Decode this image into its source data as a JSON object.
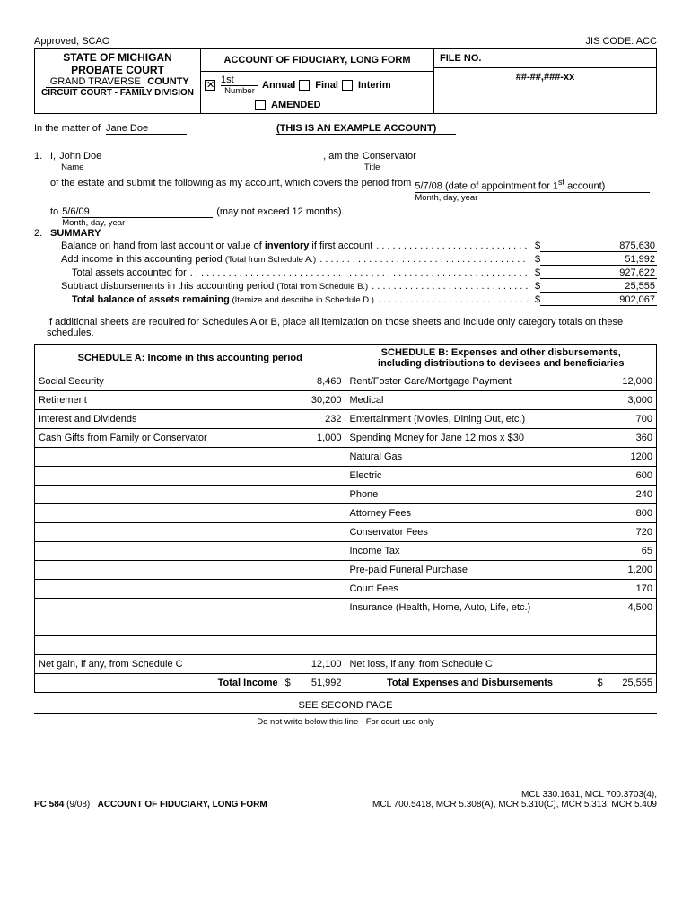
{
  "header": {
    "approved": "Approved, SCAO",
    "jis": "JIS CODE: ACC",
    "state": "STATE OF MICHIGAN",
    "court": "PROBATE COURT",
    "county": "GRAND TRAVERSE",
    "county_label": "COUNTY",
    "circuit": "CIRCUIT COURT - FAMILY DIVISION",
    "title": "ACCOUNT OF FIDUCIARY, LONG FORM",
    "number_val": "1st",
    "number_lbl": "Number",
    "annual": "Annual",
    "final": "Final",
    "interim": "Interim",
    "amended": "AMENDED",
    "fileno_lbl": "FILE NO.",
    "fileno_val": "##-##,###-xx"
  },
  "matter": {
    "prefix": "In the matter of",
    "name": "Jane Doe",
    "example": "(THIS IS AN EXAMPLE ACCOUNT)"
  },
  "stmt": {
    "num": "1.",
    "i": "I,",
    "person": "John Doe",
    "name_lbl": "Name",
    "amthe": ", am the",
    "title_val": "Conservator",
    "title_lbl": "Title",
    "line2a": "of the estate and submit the following as my account, which covers the period from",
    "from_date": "5/7/08  (date of appointment for 1",
    "from_sup": "st",
    "from_suffix": " account)",
    "mdy": "Month, day, year",
    "to": "to",
    "to_date": "5/6/09",
    "may_not": "(may not exceed 12 months).",
    "mdy2": "Month, day, year"
  },
  "summary": {
    "num": "2.",
    "title": "SUMMARY",
    "rows": [
      {
        "desc_pre": "Balance on hand from last account or value of ",
        "desc_bold": "inventory",
        "desc_post": " if first account",
        "amt": "875,630"
      },
      {
        "desc_pre": "Add income in this accounting period ",
        "paren": "(Total from Schedule A.)",
        "amt": "51,992"
      },
      {
        "desc_pre": "Total assets accounted for",
        "amt": "927,622",
        "indent": true
      },
      {
        "desc_pre": "Subtract disbursements in this accounting period ",
        "paren": "(Total from Schedule B.)",
        "amt": "25,555"
      },
      {
        "desc_bold2": "Total balance of assets remaining",
        "paren": "  (Itemize and describe in Schedule D.)",
        "amt": "902,067",
        "indent": true
      }
    ],
    "note": "If additional sheets are required for Schedules A or B, place all itemization on those sheets and include only category totals on these schedules."
  },
  "schedA_title": "SCHEDULE A:  Income in this accounting period",
  "schedB_title_l1": "SCHEDULE B:  Expenses and other disbursements,",
  "schedB_title_l2": "including distributions to devisees and beneficiaries",
  "rows": [
    {
      "a_desc": "Social Security",
      "a_amt": "8,460",
      "b_desc": "Rent/Foster Care/Mortgage Payment",
      "b_amt": "12,000"
    },
    {
      "a_desc": "Retirement",
      "a_amt": "30,200",
      "b_desc": "Medical",
      "b_amt": "3,000"
    },
    {
      "a_desc": "Interest and Dividends",
      "a_amt": "232",
      "b_desc": "Entertainment (Movies, Dining Out, etc.)",
      "b_amt": "700"
    },
    {
      "a_desc": "Cash Gifts from Family or Conservator",
      "a_amt": "1,000",
      "b_desc": "Spending Money for Jane 12  mos x $30",
      "b_amt": "360"
    },
    {
      "a_desc": "",
      "a_amt": "",
      "b_desc": "Natural Gas",
      "b_amt": "1200"
    },
    {
      "a_desc": "",
      "a_amt": "",
      "b_desc": "Electric",
      "b_amt": "600"
    },
    {
      "a_desc": "",
      "a_amt": "",
      "b_desc": "Phone",
      "b_amt": "240"
    },
    {
      "a_desc": "",
      "a_amt": "",
      "b_desc": "Attorney Fees",
      "b_amt": "800"
    },
    {
      "a_desc": "",
      "a_amt": "",
      "b_desc": "Conservator Fees",
      "b_amt": "720"
    },
    {
      "a_desc": "",
      "a_amt": "",
      "b_desc": "Income Tax",
      "b_amt": "65"
    },
    {
      "a_desc": "",
      "a_amt": "",
      "b_desc": "Pre-paid Funeral Purchase",
      "b_amt": "1,200"
    },
    {
      "a_desc": "",
      "a_amt": "",
      "b_desc": "Court Fees",
      "b_amt": "170"
    },
    {
      "a_desc": "",
      "a_amt": "",
      "b_desc": "Insurance (Health, Home, Auto, Life, etc.)",
      "b_amt": "4,500"
    },
    {
      "a_desc": "",
      "a_amt": "",
      "b_desc": "",
      "b_amt": ""
    },
    {
      "a_desc": "",
      "a_amt": "",
      "b_desc": "",
      "b_amt": ""
    },
    {
      "a_desc": "Net gain, if any, from Schedule C",
      "a_amt": "12,100",
      "b_desc": "Net loss, if any, from Schedule C",
      "b_amt": ""
    }
  ],
  "totals": {
    "a_lbl": "Total Income",
    "a_dol": "$",
    "a_amt": "51,992",
    "b_lbl": "Total Expenses and Disbursements",
    "b_dol": "$",
    "b_amt": "25,555"
  },
  "see": "SEE SECOND PAGE",
  "donot": "Do not write below this line - For court use only",
  "footer": {
    "left_code": "PC 584",
    "left_date": "(9/08)",
    "left_title": "ACCOUNT OF FIDUCIARY, LONG FORM",
    "right_l1": "MCL 330.1631, MCL 700.3703(4),",
    "right_l2": "MCL 700.5418, MCR 5.308(A), MCR 5.310(C), MCR 5.313, MCR 5.409"
  }
}
